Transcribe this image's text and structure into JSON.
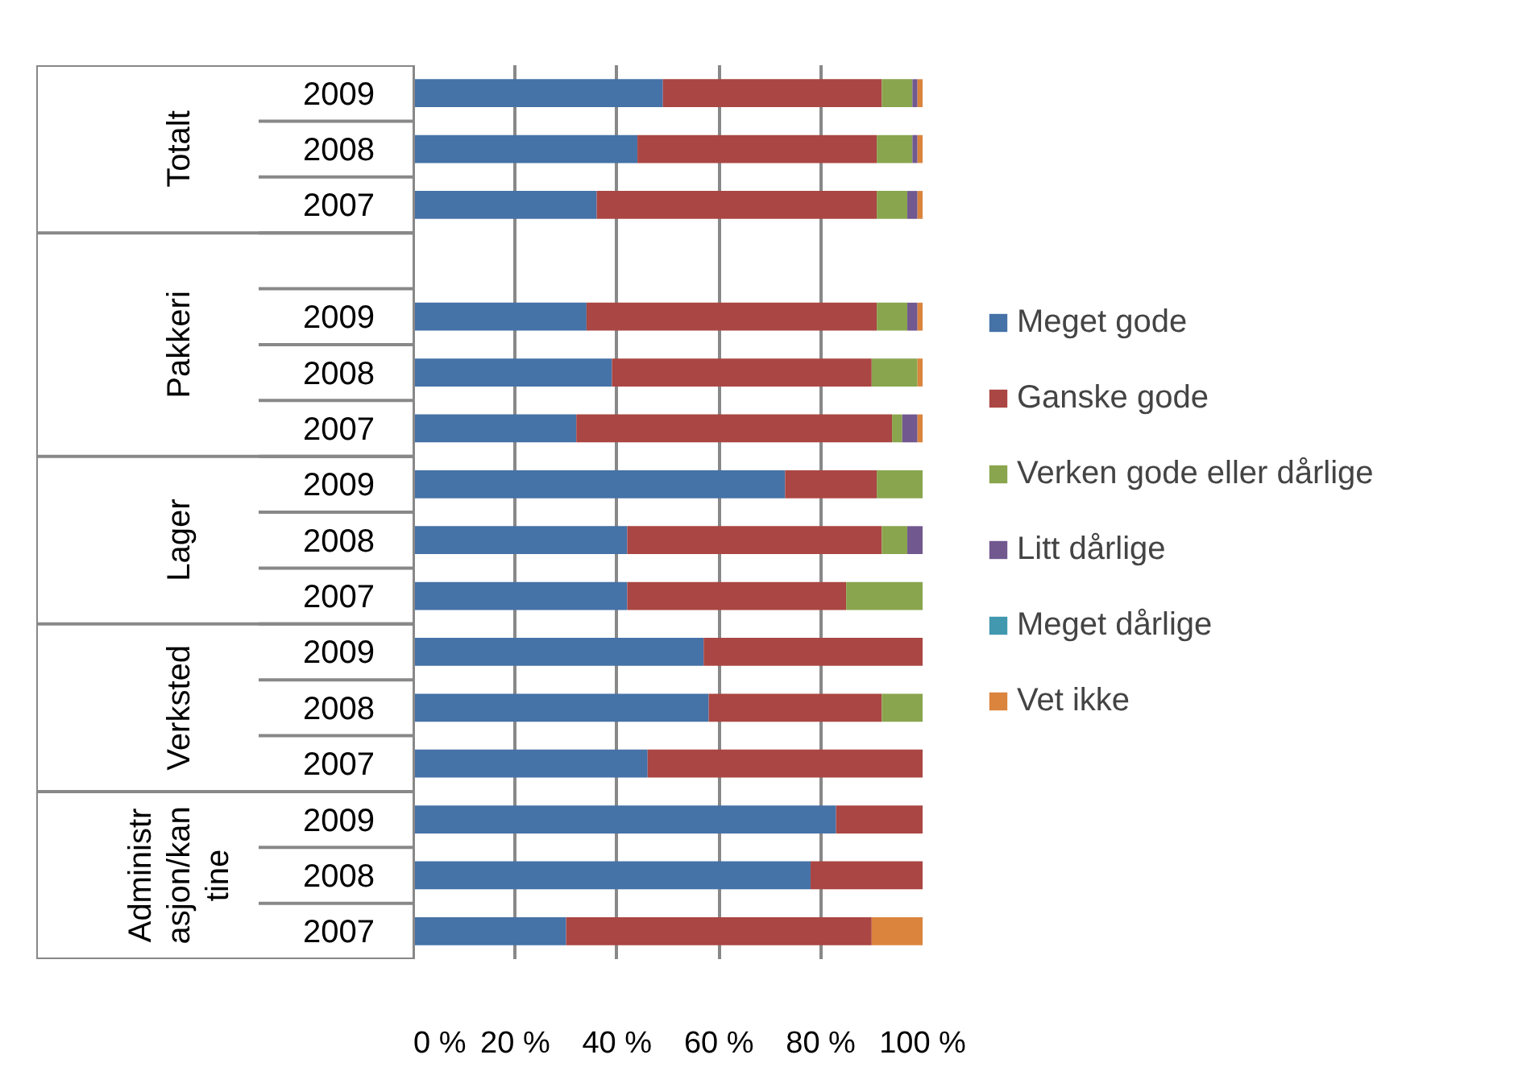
{
  "chart_data": {
    "type": "bar",
    "orientation": "horizontal",
    "stacked": true,
    "categories": [
      "2009",
      "2008",
      "2007",
      null,
      "2009",
      "2008",
      "2007",
      "2009",
      "2008",
      "2007",
      "2009",
      "2008",
      "2007",
      "2009",
      "2008",
      "2007"
    ],
    "annotations": [
      "Totalt",
      "Pakkeri",
      "Lager",
      "Verksted",
      "Administrasjon/kantine"
    ],
    "series": [
      {
        "name": "Meget gode",
        "color": "#4572a7",
        "values": [
          49,
          44,
          36,
          null,
          34,
          39,
          32,
          73,
          42,
          42,
          57,
          58,
          46,
          83,
          78,
          30
        ]
      },
      {
        "name": "Ganske gode",
        "color": "#aa4643",
        "values": [
          43,
          47,
          55,
          null,
          57,
          51,
          62,
          18,
          50,
          43,
          43,
          34,
          54,
          17,
          22,
          60
        ]
      },
      {
        "name": "Verken gode eller dårlige",
        "color": "#89a54e",
        "values": [
          6,
          7,
          6,
          null,
          6,
          9,
          2,
          9,
          5,
          15,
          0,
          8,
          0,
          0,
          0,
          0
        ]
      },
      {
        "name": "Litt dårlige",
        "color": "#71588f",
        "values": [
          1,
          1,
          2,
          null,
          2,
          0,
          3,
          0,
          3,
          0,
          0,
          0,
          0,
          0,
          0,
          0
        ]
      },
      {
        "name": "Meget dårlige",
        "color": "#4198af",
        "values": [
          0,
          0,
          0,
          null,
          0,
          0,
          0,
          0,
          0,
          0,
          0,
          0,
          0,
          0,
          0,
          0
        ]
      },
      {
        "name": "Vet ikke",
        "color": "#db843d",
        "values": [
          1,
          1,
          1,
          null,
          1,
          1,
          1,
          0,
          0,
          0,
          0,
          0,
          0,
          0,
          0,
          10
        ]
      }
    ],
    "xlim": [
      0,
      100
    ],
    "xticks": [
      {
        "value": 0,
        "label": "0 %"
      },
      {
        "value": 20,
        "label": "20 %"
      },
      {
        "value": 40,
        "label": "40 %"
      },
      {
        "value": 60,
        "label": "60 %"
      },
      {
        "value": 80,
        "label": "80 %"
      },
      {
        "value": 100,
        "label": "100 %"
      }
    ],
    "grid": "x",
    "legend": "right"
  }
}
